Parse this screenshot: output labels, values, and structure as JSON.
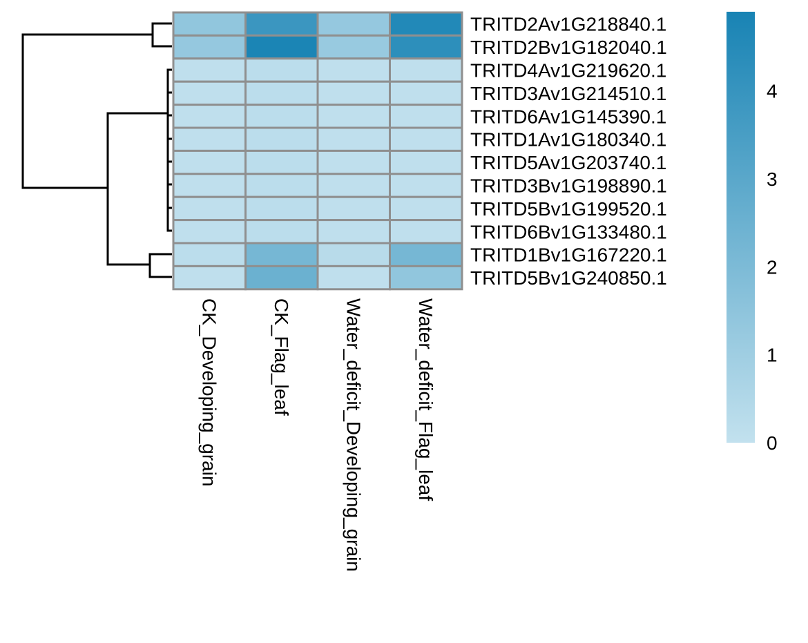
{
  "chart_data": {
    "type": "heatmap",
    "title": "",
    "rows": [
      "TRITD2Av1G218840.1",
      "TRITD2Bv1G182040.1",
      "TRITD4Av1G219620.1",
      "TRITD3Av1G214510.1",
      "TRITD6Av1G145390.1",
      "TRITD1Av1G180340.1",
      "TRITD5Av1G203740.1",
      "TRITD3Bv1G198890.1",
      "TRITD5Bv1G199520.1",
      "TRITD6Bv1G133480.1",
      "TRITD1Bv1G167220.1",
      "TRITD5Bv1G240850.1"
    ],
    "columns": [
      "CK_Developing_grain",
      "CK_Flag_leaf",
      "Water_deficit_Developing_grain",
      "Water_deficit_Flag_leaf"
    ],
    "values": [
      [
        1.4,
        3.9,
        1.3,
        4.6
      ],
      [
        1.3,
        4.8,
        1.2,
        4.3
      ],
      [
        0.1,
        0.2,
        0.1,
        0.1
      ],
      [
        0.1,
        0.2,
        0.1,
        0.1
      ],
      [
        0.1,
        0.2,
        0.1,
        0.1
      ],
      [
        0.1,
        0.2,
        0.1,
        0.1
      ],
      [
        0.1,
        0.2,
        0.1,
        0.1
      ],
      [
        0.1,
        0.2,
        0.1,
        0.1
      ],
      [
        0.1,
        0.2,
        0.1,
        0.1
      ],
      [
        0.1,
        0.2,
        0.1,
        0.1
      ],
      [
        0.2,
        2.2,
        0.3,
        2.2
      ],
      [
        0.1,
        2.5,
        0.1,
        1.4
      ]
    ],
    "color_scale": {
      "min": 0,
      "max": 4.9,
      "low_color": "#c2e1ee",
      "high_color": "#1883b4"
    },
    "legend": {
      "position": "right",
      "ticks": [
        0,
        1,
        2,
        3,
        4
      ]
    }
  }
}
